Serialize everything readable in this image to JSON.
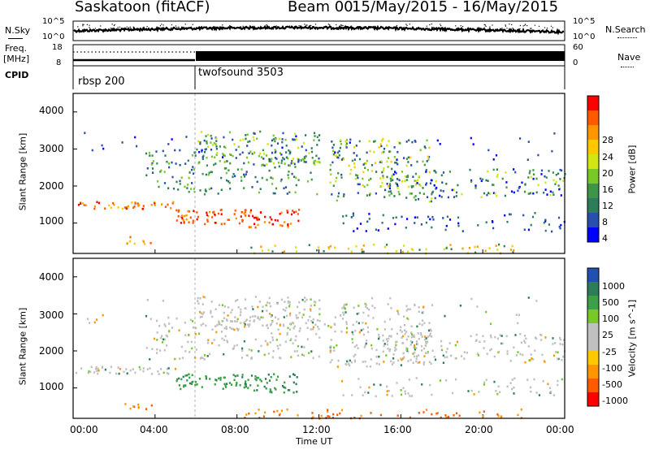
{
  "header": {
    "station": "Saskatoon  (fitACF)",
    "beam": "Beam 00",
    "dates": "15/May/2015 - 16/May/2015"
  },
  "strip_nsky": {
    "left_label": "N.Sky",
    "right_label": "N.Search",
    "left_ticks": [
      "10^5",
      "10^0"
    ],
    "right_ticks": [
      "10^5",
      "10^0"
    ]
  },
  "strip_freq": {
    "left_label_1": "Freq.",
    "left_label_2": "[MHz]",
    "right_label": "Nave",
    "left_ticks": [
      "18",
      "8"
    ],
    "right_ticks": [
      "60",
      "0"
    ]
  },
  "cpid": {
    "label": "CPID",
    "modes": [
      "rbsp 200",
      "twofsound 3503"
    ]
  },
  "xaxis": {
    "label": "Time UT",
    "ticks": [
      "00:00",
      "04:00",
      "08:00",
      "12:00",
      "16:00",
      "20:00",
      "00:00"
    ]
  },
  "colors": {
    "background": "#ffffff",
    "frame": "#000000"
  },
  "chart_data": [
    {
      "type": "heatmap",
      "name": "power",
      "ylabel": "Slant Range [km]",
      "yticks": [
        "4000",
        "3000",
        "2000",
        "1000"
      ],
      "colorbar_label": "Power [dB]",
      "colorbar_ticks": [
        "28",
        "24",
        "20",
        "16",
        "12",
        "8",
        "4"
      ],
      "colorbar_colors": [
        "#ff0000",
        "#ff5a00",
        "#ff9600",
        "#ffc800",
        "#d2e614",
        "#78c828",
        "#3c9646",
        "#2d7d5a",
        "#2850aa",
        "#0000ff"
      ],
      "x_range_hours": [
        0,
        24
      ],
      "y_range_km": [
        180,
        4500
      ]
    },
    {
      "type": "heatmap",
      "name": "velocity",
      "ylabel": "Slant Range [km]",
      "yticks": [
        "4000",
        "3000",
        "2000",
        "1000"
      ],
      "colorbar_label": "Velocity [m s^-1]",
      "colorbar_ticks": [
        "1000",
        "500",
        "100",
        "25",
        "-25",
        "-100",
        "-500",
        "-1000"
      ],
      "colorbar_colors": [
        "#2050b0",
        "#2d7d5a",
        "#3ca046",
        "#78c828",
        "#c0c0c0",
        "#c0c0c0",
        "#ffc800",
        "#ff9600",
        "#ff5a00",
        "#ff0000"
      ],
      "x_range_hours": [
        0,
        24
      ],
      "y_range_km": [
        180,
        4500
      ]
    }
  ]
}
